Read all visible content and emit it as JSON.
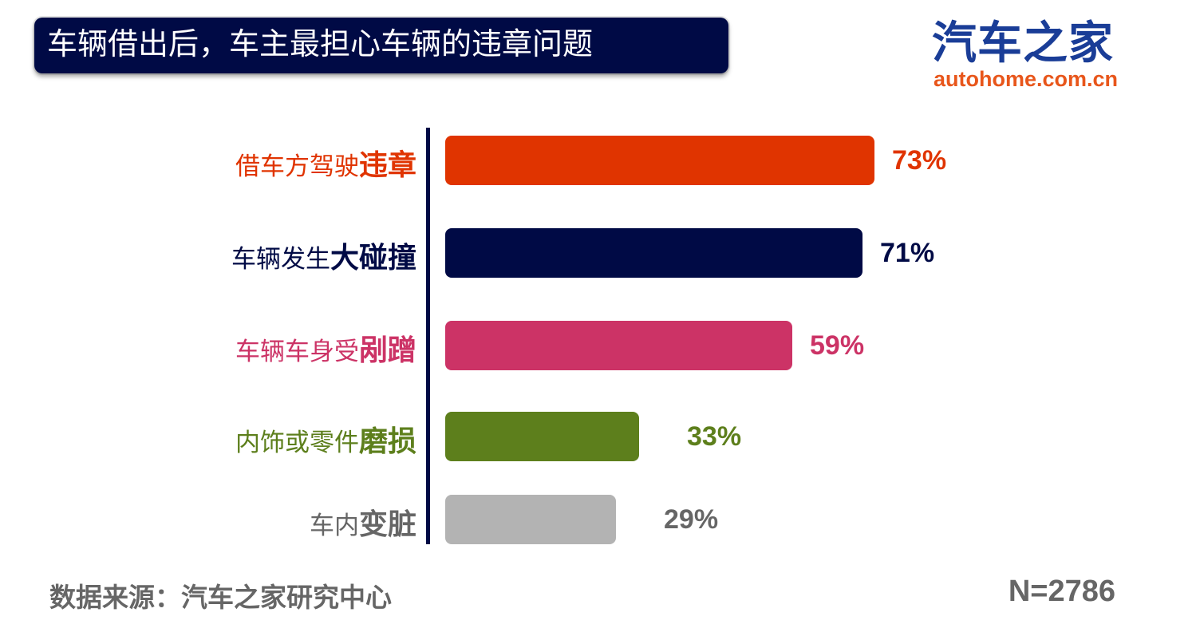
{
  "title": "车辆借出后，车主最担心车辆的违章问题",
  "logo": {
    "cn": "汽车之家",
    "url": "autohome.com.cn"
  },
  "chart_data": {
    "type": "bar",
    "orientation": "horizontal",
    "categories": [
      {
        "prefix": "借车方驾驶",
        "emphasis": "违章",
        "color": "#e03400"
      },
      {
        "prefix": "车辆发生",
        "emphasis": "大碰撞",
        "color": "#000a45"
      },
      {
        "prefix": "车辆车身受",
        "emphasis": "剐蹭",
        "color": "#cc3366"
      },
      {
        "prefix": "内饰或零件",
        "emphasis": "磨损",
        "color": "#5d7f1c"
      },
      {
        "prefix": "车内",
        "emphasis": "变脏",
        "color": "#b3b3b3"
      }
    ],
    "values": [
      73,
      71,
      59,
      33,
      29
    ],
    "value_labels": [
      "73%",
      "71%",
      "59%",
      "33%",
      "29%"
    ],
    "value_label_colors": [
      "#e03400",
      "#000a45",
      "#cc3366",
      "#5d7f1c",
      "#666666"
    ],
    "unit": "%",
    "grid": false,
    "legend": "none"
  },
  "footer": {
    "source": "数据来源：汽车之家研究中心",
    "n": "N=2786"
  }
}
